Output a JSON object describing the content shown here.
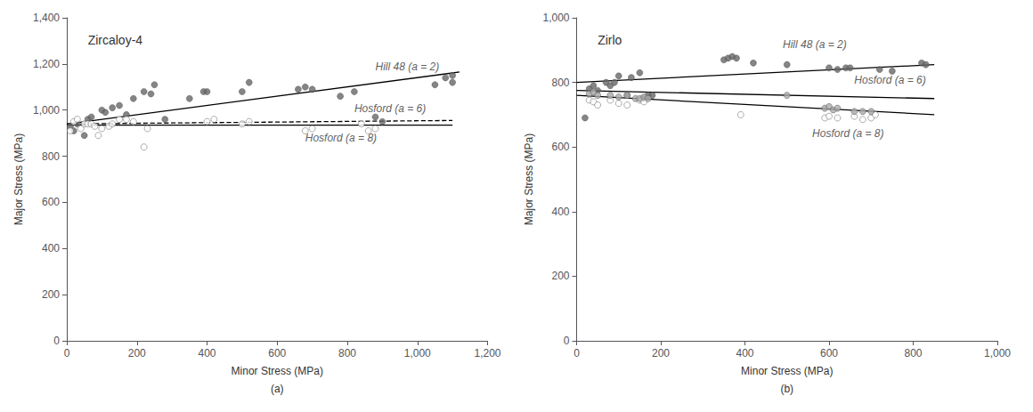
{
  "chart_data": [
    {
      "type": "scatter",
      "title": "Zircaloy-4",
      "subtitle": "(a)",
      "xlabel": "Minor Stress (MPa)",
      "ylabel": "Major Stress (MPa)",
      "xlim": [
        0,
        1200
      ],
      "ylim": [
        0,
        1400
      ],
      "xticks": [
        0,
        200,
        400,
        600,
        800,
        1000,
        1200
      ],
      "yticks": [
        0,
        200,
        400,
        600,
        800,
        1000,
        1200,
        1400
      ],
      "grid": false,
      "series": [
        {
          "type": "scatter",
          "color": "#666666",
          "marker": "circle",
          "x": [
            10,
            20,
            30,
            50,
            60,
            70,
            100,
            110,
            130,
            150,
            170,
            190,
            220,
            240,
            250,
            280,
            350,
            390,
            400,
            500,
            520,
            660,
            680,
            700,
            780,
            820,
            880,
            900,
            1050,
            1080,
            1100,
            1100
          ],
          "values": [
            930,
            910,
            940,
            890,
            960,
            970,
            1000,
            990,
            1010,
            1020,
            980,
            1050,
            1080,
            1070,
            1110,
            960,
            1050,
            1080,
            1080,
            1080,
            1120,
            1090,
            1100,
            1090,
            1060,
            1080,
            970,
            950,
            1110,
            1140,
            1150,
            1120
          ]
        },
        {
          "type": "scatter",
          "color": "#ffffff",
          "marker": "circle",
          "x": [
            10,
            20,
            30,
            40,
            50,
            60,
            70,
            80,
            90,
            100,
            120,
            130,
            150,
            170,
            190,
            220,
            230,
            400,
            420,
            500,
            520,
            680,
            700,
            840,
            860,
            880
          ],
          "values": [
            910,
            950,
            960,
            920,
            940,
            940,
            940,
            930,
            890,
            920,
            930,
            940,
            960,
            960,
            950,
            840,
            920,
            950,
            960,
            940,
            950,
            910,
            920,
            940,
            910,
            920
          ]
        },
        {
          "type": "line",
          "color": "#000000",
          "line_style": "solid",
          "x": [
            0,
            1120
          ],
          "values": [
            940,
            1165
          ]
        },
        {
          "type": "line",
          "color": "#000000",
          "line_style": "dashed",
          "x": [
            0,
            1100
          ],
          "values": [
            940,
            955
          ]
        },
        {
          "type": "line",
          "color": "#000000",
          "line_style": "solid",
          "x": [
            0,
            1100
          ],
          "values": [
            935,
            935
          ]
        }
      ],
      "annotations": [
        {
          "text": "Hill 48 (a = 2)",
          "x": 880,
          "y": 1165
        },
        {
          "text": "Hosford (a = 6)",
          "x": 820,
          "y": 985
        },
        {
          "text": "Hosford (a = 8)",
          "x": 680,
          "y": 855
        }
      ]
    },
    {
      "type": "scatter",
      "title": "Zirlo",
      "subtitle": "(b)",
      "xlabel": "Minor Stress (MPa)",
      "ylabel": "Major Stress (MPa)",
      "xlim": [
        0,
        1000
      ],
      "ylim": [
        0,
        1000
      ],
      "xticks": [
        0,
        200,
        400,
        600,
        800,
        1000
      ],
      "yticks": [
        0,
        200,
        400,
        600,
        800,
        1000
      ],
      "grid": false,
      "series": [
        {
          "type": "scatter",
          "color": "#666666",
          "marker": "circle",
          "x": [
            20,
            30,
            40,
            50,
            70,
            80,
            90,
            100,
            120,
            130,
            150,
            160,
            170,
            180,
            350,
            360,
            370,
            380,
            420,
            500,
            600,
            620,
            640,
            650,
            720,
            750,
            820,
            830
          ],
          "values": [
            690,
            780,
            790,
            775,
            800,
            790,
            800,
            820,
            760,
            815,
            830,
            750,
            760,
            760,
            870,
            875,
            880,
            875,
            860,
            855,
            845,
            840,
            845,
            845,
            840,
            835,
            860,
            855
          ]
        },
        {
          "type": "scatter",
          "color": "#ffffff",
          "marker": "circle",
          "x": [
            30,
            40,
            50,
            80,
            100,
            120,
            150,
            160,
            390,
            590,
            600,
            620,
            660,
            680,
            700,
            710
          ],
          "values": [
            745,
            740,
            730,
            745,
            735,
            730,
            745,
            740,
            700,
            690,
            695,
            690,
            695,
            685,
            690,
            700
          ]
        },
        {
          "type": "scatter",
          "color": "#aaaaaa",
          "marker": "circle",
          "x": [
            30,
            40,
            50,
            80,
            100,
            120,
            140,
            150,
            160,
            170,
            500,
            590,
            600,
            610,
            620,
            660,
            680,
            700
          ],
          "values": [
            765,
            770,
            760,
            760,
            755,
            760,
            750,
            750,
            755,
            750,
            760,
            720,
            725,
            715,
            720,
            710,
            710,
            710
          ]
        },
        {
          "type": "line",
          "color": "#000000",
          "line_style": "solid",
          "x": [
            0,
            850
          ],
          "values": [
            800,
            855
          ]
        },
        {
          "type": "line",
          "color": "#000000",
          "line_style": "solid",
          "x": [
            0,
            850
          ],
          "values": [
            775,
            750
          ]
        },
        {
          "type": "line",
          "color": "#000000",
          "line_style": "solid",
          "x": [
            0,
            850
          ],
          "values": [
            760,
            700
          ]
        }
      ],
      "annotations": [
        {
          "text": "Hill 48 (a = 2)",
          "x": 490,
          "y": 900
        },
        {
          "text": "Hosford (a = 6)",
          "x": 660,
          "y": 790
        },
        {
          "text": "Hosford (a = 8)",
          "x": 560,
          "y": 625
        }
      ]
    }
  ]
}
